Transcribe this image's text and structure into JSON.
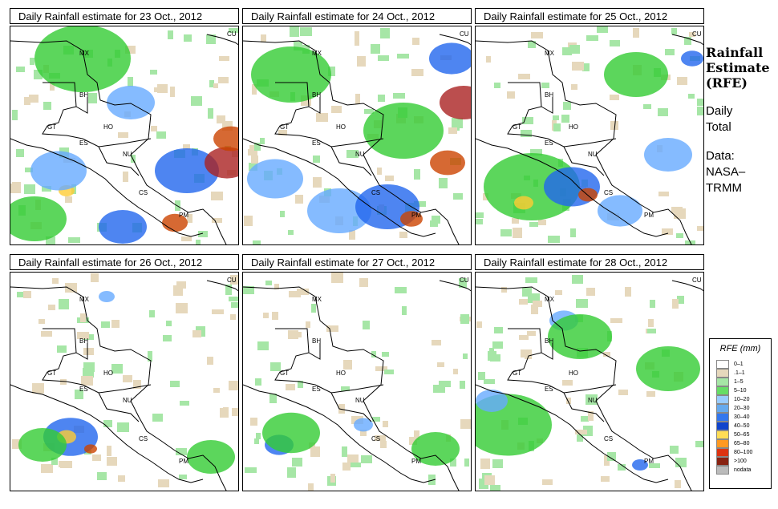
{
  "panels": [
    {
      "title": "Daily Rainfall estimate for  23 Oct., 2012",
      "rain": [
        {
          "c": "#33cc33",
          "x": 90,
          "y": 40,
          "r": 60
        },
        {
          "c": "#66aaff",
          "x": 150,
          "y": 95,
          "r": 30
        },
        {
          "c": "#2266ee",
          "x": 220,
          "y": 180,
          "r": 40
        },
        {
          "c": "#aa2222",
          "x": 270,
          "y": 170,
          "r": 28
        },
        {
          "c": "#cc4400",
          "x": 275,
          "y": 140,
          "r": 22
        },
        {
          "c": "#2266ee",
          "x": 140,
          "y": 250,
          "r": 30
        },
        {
          "c": "#cc4400",
          "x": 205,
          "y": 245,
          "r": 16
        },
        {
          "c": "#ffcc33",
          "x": 70,
          "y": 205,
          "r": 10
        },
        {
          "c": "#66aaff",
          "x": 60,
          "y": 180,
          "r": 35
        },
        {
          "c": "#33cc33",
          "x": 30,
          "y": 240,
          "r": 40
        }
      ]
    },
    {
      "title": "Daily Rainfall estimate for  24 Oct., 2012",
      "rain": [
        {
          "c": "#33cc33",
          "x": 60,
          "y": 60,
          "r": 50
        },
        {
          "c": "#66aaff",
          "x": 120,
          "y": 230,
          "r": 40
        },
        {
          "c": "#2266ee",
          "x": 180,
          "y": 225,
          "r": 40
        },
        {
          "c": "#cc4400",
          "x": 210,
          "y": 240,
          "r": 14
        },
        {
          "c": "#cc4400",
          "x": 255,
          "y": 170,
          "r": 22
        },
        {
          "c": "#aa2222",
          "x": 275,
          "y": 95,
          "r": 30
        },
        {
          "c": "#2266ee",
          "x": 260,
          "y": 40,
          "r": 28
        },
        {
          "c": "#66aaff",
          "x": 40,
          "y": 190,
          "r": 35
        },
        {
          "c": "#33cc33",
          "x": 200,
          "y": 130,
          "r": 50
        }
      ]
    },
    {
      "title": "Daily Rainfall estimate for  25 Oct., 2012",
      "rain": [
        {
          "c": "#33cc33",
          "x": 70,
          "y": 200,
          "r": 60
        },
        {
          "c": "#2266ee",
          "x": 120,
          "y": 200,
          "r": 35
        },
        {
          "c": "#ffcc33",
          "x": 60,
          "y": 220,
          "r": 12
        },
        {
          "c": "#cc4400",
          "x": 140,
          "y": 210,
          "r": 12
        },
        {
          "c": "#66aaff",
          "x": 180,
          "y": 230,
          "r": 28
        },
        {
          "c": "#2266ee",
          "x": 270,
          "y": 40,
          "r": 14
        },
        {
          "c": "#66aaff",
          "x": 240,
          "y": 160,
          "r": 30
        },
        {
          "c": "#33cc33",
          "x": 200,
          "y": 60,
          "r": 40
        }
      ]
    },
    {
      "title": "Daily Rainfall estimate for  26 Oct., 2012",
      "rain": [
        {
          "c": "#2266ee",
          "x": 75,
          "y": 205,
          "r": 34
        },
        {
          "c": "#ffcc33",
          "x": 70,
          "y": 205,
          "r": 12
        },
        {
          "c": "#cc4400",
          "x": 100,
          "y": 220,
          "r": 8
        },
        {
          "c": "#33cc33",
          "x": 40,
          "y": 215,
          "r": 30
        },
        {
          "c": "#66aaff",
          "x": 120,
          "y": 30,
          "r": 10
        },
        {
          "c": "#33cc33",
          "x": 250,
          "y": 230,
          "r": 30
        }
      ]
    },
    {
      "title": "Daily Rainfall estimate for  27 Oct., 2012",
      "rain": [
        {
          "c": "#2266ee",
          "x": 45,
          "y": 215,
          "r": 18
        },
        {
          "c": "#33cc33",
          "x": 60,
          "y": 200,
          "r": 36
        },
        {
          "c": "#66aaff",
          "x": 150,
          "y": 190,
          "r": 12
        },
        {
          "c": "#33cc33",
          "x": 240,
          "y": 220,
          "r": 30
        }
      ]
    },
    {
      "title": "Daily Rainfall estimate for  28 Oct., 2012",
      "rain": [
        {
          "c": "#33cc33",
          "x": 40,
          "y": 190,
          "r": 55
        },
        {
          "c": "#66aaff",
          "x": 110,
          "y": 60,
          "r": 18
        },
        {
          "c": "#33cc33",
          "x": 130,
          "y": 80,
          "r": 40
        },
        {
          "c": "#2266ee",
          "x": 205,
          "y": 240,
          "r": 10
        },
        {
          "c": "#33cc33",
          "x": 240,
          "y": 120,
          "r": 40
        },
        {
          "c": "#66aaff",
          "x": 20,
          "y": 160,
          "r": 20
        }
      ]
    }
  ],
  "country_labels": [
    "MX",
    "BH",
    "GT",
    "HO",
    "ES",
    "NU",
    "CS",
    "PM",
    "CU"
  ],
  "side": {
    "title_line1": "Rainfall",
    "title_line2": "Estimate",
    "title_line3": "(RFE)",
    "daily": "Daily",
    "total": "Total",
    "data_label": "Data:",
    "source_line1": "NASA–",
    "source_line2": "TRMM"
  },
  "legend": {
    "title": "RFE (mm)",
    "items": [
      {
        "label": "0–1",
        "color": "#ffffff"
      },
      {
        "label": ".1–1",
        "color": "#e6d8bc"
      },
      {
        "label": "1–5",
        "color": "#a6e6a6"
      },
      {
        "label": "5–10",
        "color": "#66dd66"
      },
      {
        "label": "10–20",
        "color": "#99ccff"
      },
      {
        "label": "20–30",
        "color": "#66aaee"
      },
      {
        "label": "30–40",
        "color": "#3377ee"
      },
      {
        "label": "40–50",
        "color": "#1144cc"
      },
      {
        "label": "50–65",
        "color": "#ffdd55"
      },
      {
        "label": "65–80",
        "color": "#ff9922"
      },
      {
        "label": "80–100",
        "color": "#dd3311"
      },
      {
        "label": ">100",
        "color": "#882211"
      },
      {
        "label": "nodata",
        "color": "#bbbbbb"
      }
    ]
  }
}
